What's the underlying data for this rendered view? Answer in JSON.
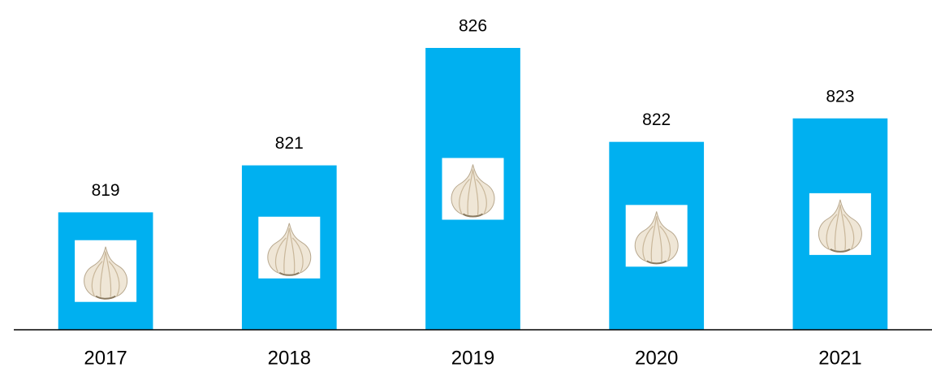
{
  "chart_data": {
    "type": "bar",
    "categories": [
      "2017",
      "2018",
      "2019",
      "2020",
      "2021"
    ],
    "values": [
      819,
      821,
      826,
      822,
      823
    ],
    "color": "#00b0f0",
    "ylim": [
      814,
      826
    ]
  }
}
